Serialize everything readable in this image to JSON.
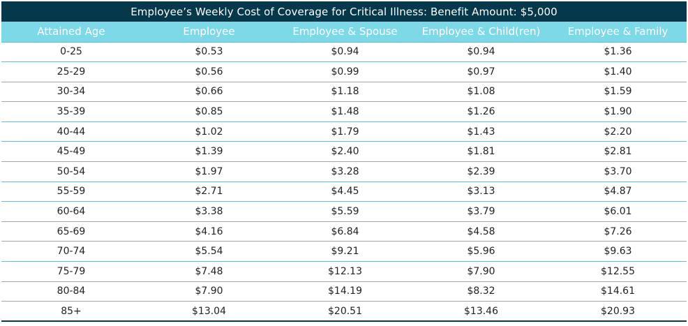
{
  "table": {
    "title": "Employee’s Weekly Cost of Coverage for Critical Illness: Benefit Amount: $5,000",
    "headers": [
      "Attained Age",
      "Employee",
      "Employee & Spouse",
      "Employee & Child(ren)",
      "Employee & Family"
    ],
    "rows": [
      [
        "0-25",
        "$0.53",
        "$0.94",
        "$0.94",
        "$1.36"
      ],
      [
        "25-29",
        "$0.56",
        "$0.99",
        "$0.97",
        "$1.40"
      ],
      [
        "30-34",
        "$0.66",
        "$1.18",
        "$1.08",
        "$1.59"
      ],
      [
        "35-39",
        "$0.85",
        "$1.48",
        "$1.26",
        "$1.90"
      ],
      [
        "40-44",
        "$1.02",
        "$1.79",
        "$1.43",
        "$2.20"
      ],
      [
        "45-49",
        "$1.39",
        "$2.40",
        "$1.81",
        "$2.81"
      ],
      [
        "50-54",
        "$1.97",
        "$3.28",
        "$2.39",
        "$3.70"
      ],
      [
        "55-59",
        "$2.71",
        "$4.45",
        "$3.13",
        "$4.87"
      ],
      [
        "60-64",
        "$3.38",
        "$5.59",
        "$3.79",
        "$6.01"
      ],
      [
        "65-69",
        "$4.16",
        "$6.84",
        "$4.58",
        "$7.26"
      ],
      [
        "70-74",
        "$5.54",
        "$9.21",
        "$5.96",
        "$9.63"
      ],
      [
        "75-79",
        "$7.48",
        "$12.13",
        "$7.90",
        "$12.55"
      ],
      [
        "80-84",
        "$7.90",
        "$14.19",
        "$8.32",
        "$14.61"
      ],
      [
        "85+",
        "$13.04",
        "$20.51",
        "$13.46",
        "$20.93"
      ]
    ]
  },
  "colors": {
    "title_background": "#05384a",
    "header_background": "#7dd8e8",
    "row_divider": "#7fb3c2",
    "text": "#222222"
  }
}
